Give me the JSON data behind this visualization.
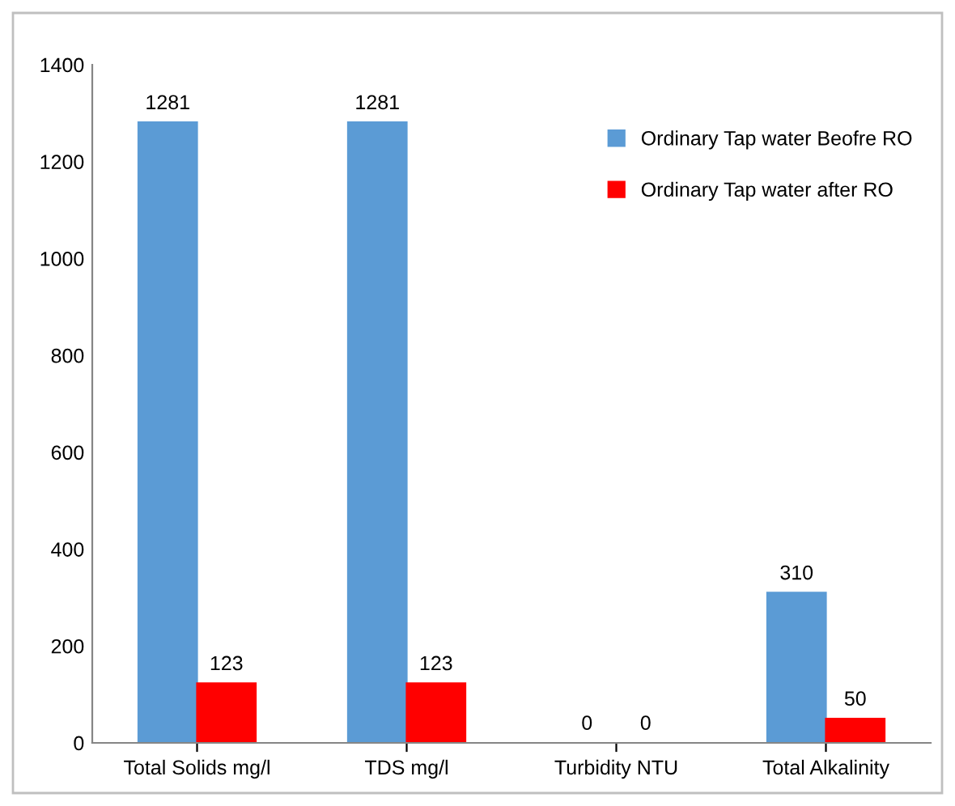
{
  "chart_data": {
    "type": "bar",
    "categories": [
      "Total Solids mg/l",
      "TDS mg/l",
      "Turbidity NTU",
      "Total Alkalinity"
    ],
    "series": [
      {
        "name": "Ordinary Tap water Beofre RO",
        "color": "#5b9bd5",
        "values": [
          1281,
          1281,
          0,
          310
        ]
      },
      {
        "name": "Ordinary Tap water after RO",
        "color": "#ff0000",
        "values": [
          123,
          123,
          0,
          50
        ]
      }
    ],
    "ylim": [
      0,
      1400
    ],
    "yticks": [
      0,
      200,
      400,
      600,
      800,
      1000,
      1200,
      1400
    ],
    "data_labels": true,
    "legend": "top right",
    "grid": false
  }
}
